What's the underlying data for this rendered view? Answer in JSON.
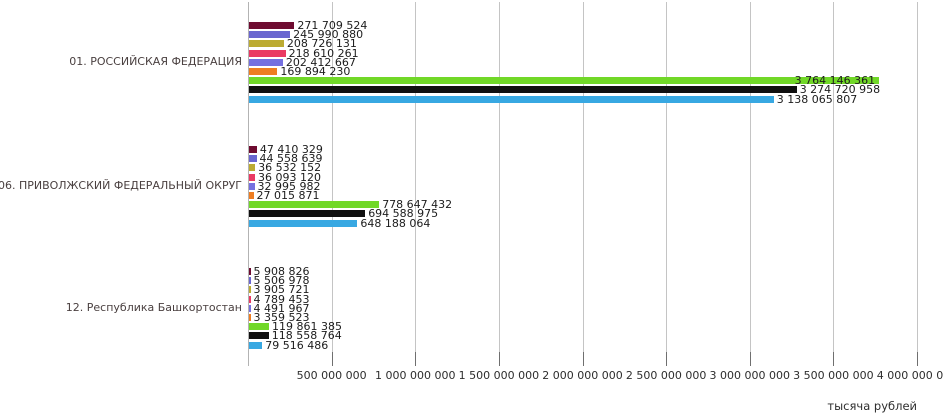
{
  "chart_data": {
    "type": "bar",
    "orientation": "horizontal",
    "title": "",
    "xlabel": "тысяча рублей",
    "legend": false,
    "grid": true,
    "xlim": [
      0,
      4000000000
    ],
    "x_ticks": [
      500000000,
      1000000000,
      1500000000,
      2000000000,
      2500000000,
      3000000000,
      3500000000,
      4000000000
    ],
    "x_tick_labels": [
      "500 000 000",
      "1 000 000 000",
      "1 500 000 000",
      "2 000 000 000",
      "2 500 000 000",
      "3 000 000 000",
      "3 500 000 000",
      "4 000 000 000"
    ],
    "categories": [
      "01. РОССИЙСКАЯ ФЕДЕРАЦИЯ",
      "06. ПРИВОЛЖСКИЙ ФЕДЕРАЛЬНЫЙ ОКРУГ",
      "12. Республика Башкортостан"
    ],
    "series": [
      {
        "name": "series-1-dark-burgundy",
        "color": "#6e0b30",
        "values": [
          271709524,
          47410329,
          5908826
        ]
      },
      {
        "name": "series-2-blue-violet",
        "color": "#6a66d0",
        "values": [
          245990880,
          44558639,
          5506978
        ]
      },
      {
        "name": "series-3-dark-yellow",
        "color": "#bcab32",
        "values": [
          208726131,
          36532152,
          3905721
        ]
      },
      {
        "name": "series-4-pink-crimson",
        "color": "#ea3a63",
        "values": [
          218610261,
          36093120,
          4789453
        ]
      },
      {
        "name": "series-5-periwinkle",
        "color": "#7570e0",
        "values": [
          202412667,
          32995982,
          4491967
        ]
      },
      {
        "name": "series-6-orange",
        "color": "#ee7d22",
        "values": [
          169894230,
          27015871,
          3359523
        ]
      },
      {
        "name": "series-7-bright-green",
        "color": "#71d828",
        "values": [
          3764146361,
          778647432,
          119861385
        ]
      },
      {
        "name": "series-8-black",
        "color": "#101010",
        "values": [
          3274720958,
          694588975,
          118558764
        ]
      },
      {
        "name": "series-9-light-blue",
        "color": "#38a8e2",
        "values": [
          3138065807,
          648188064,
          79516486
        ]
      }
    ],
    "value_labels_format": "space-grouped"
  }
}
